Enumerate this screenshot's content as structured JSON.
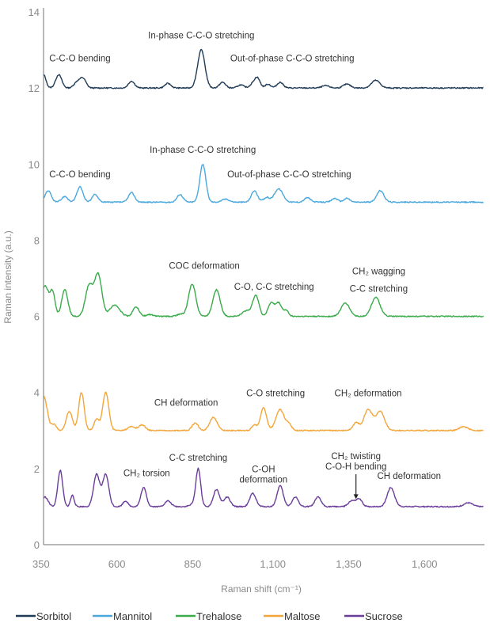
{
  "chart_data": {
    "type": "line",
    "title": "",
    "xlabel": "Raman shift (cm⁻¹)",
    "ylabel": "Raman intensity (a.u.)",
    "xlim": [
      350,
      1800
    ],
    "ylim": [
      0,
      14
    ],
    "x_ticks": [
      350,
      600,
      850,
      1100,
      1350,
      1600
    ],
    "x_tick_labels": [
      "350",
      "600",
      "850",
      "1,100",
      "1,350",
      "1,600"
    ],
    "y_ticks": [
      0,
      2,
      4,
      6,
      8,
      10,
      12,
      14
    ],
    "y_tick_labels": [
      "0",
      "2",
      "4",
      "6",
      "8",
      "10",
      "12",
      "14"
    ],
    "grid": false,
    "legend_position": "bottom",
    "series": [
      {
        "name": "Sorbitol",
        "color": "#1f3b57",
        "baseline": 12.0,
        "peaks": [
          [
            350,
            0.35,
            8
          ],
          [
            400,
            0.35,
            10
          ],
          [
            460,
            0.15,
            10
          ],
          [
            480,
            0.25,
            10
          ],
          [
            640,
            0.18,
            10
          ],
          [
            760,
            0.12,
            10
          ],
          [
            870,
            1.0,
            12
          ],
          [
            940,
            0.15,
            10
          ],
          [
            1000,
            0.08,
            10
          ],
          [
            1040,
            0.1,
            10
          ],
          [
            1055,
            0.25,
            9
          ],
          [
            1090,
            0.1,
            9
          ],
          [
            1130,
            0.15,
            10
          ],
          [
            1280,
            0.06,
            12
          ],
          [
            1350,
            0.1,
            12
          ],
          [
            1445,
            0.2,
            14
          ]
        ]
      },
      {
        "name": "Mannitol",
        "color": "#4aa8de",
        "baseline": 9.0,
        "peaks": [
          [
            365,
            0.3,
            10
          ],
          [
            420,
            0.15,
            10
          ],
          [
            470,
            0.4,
            10
          ],
          [
            520,
            0.2,
            10
          ],
          [
            640,
            0.25,
            10
          ],
          [
            800,
            0.2,
            10
          ],
          [
            875,
            1.0,
            10
          ],
          [
            950,
            0.08,
            12
          ],
          [
            1045,
            0.3,
            10
          ],
          [
            1085,
            0.12,
            10
          ],
          [
            1125,
            0.35,
            14
          ],
          [
            1220,
            0.12,
            10
          ],
          [
            1310,
            0.1,
            10
          ],
          [
            1350,
            0.1,
            10
          ],
          [
            1460,
            0.3,
            12
          ]
        ]
      },
      {
        "name": "Trehalose",
        "color": "#3aaa4a",
        "baseline": 6.0,
        "peaks": [
          [
            355,
            0.8,
            12
          ],
          [
            380,
            0.6,
            8
          ],
          [
            420,
            0.7,
            10
          ],
          [
            500,
            0.8,
            12
          ],
          [
            530,
            1.1,
            12
          ],
          [
            585,
            0.3,
            16
          ],
          [
            655,
            0.25,
            10
          ],
          [
            700,
            0.05,
            10
          ],
          [
            800,
            0.06,
            10
          ],
          [
            840,
            0.85,
            12
          ],
          [
            920,
            0.7,
            12
          ],
          [
            1020,
            0.15,
            14
          ],
          [
            1050,
            0.55,
            10
          ],
          [
            1100,
            0.35,
            10
          ],
          [
            1125,
            0.35,
            10
          ],
          [
            1150,
            0.15,
            8
          ],
          [
            1345,
            0.35,
            14
          ],
          [
            1445,
            0.5,
            14
          ]
        ]
      },
      {
        "name": "Maltose",
        "color": "#f2a63a",
        "baseline": 3.0,
        "peaks": [
          [
            350,
            0.9,
            12
          ],
          [
            385,
            0.15,
            8
          ],
          [
            435,
            0.5,
            10
          ],
          [
            475,
            1.0,
            9
          ],
          [
            525,
            0.3,
            8
          ],
          [
            555,
            1.0,
            10
          ],
          [
            640,
            0.1,
            12
          ],
          [
            675,
            0.15,
            10
          ],
          [
            850,
            0.2,
            10
          ],
          [
            910,
            0.35,
            12
          ],
          [
            1045,
            0.15,
            8
          ],
          [
            1075,
            0.6,
            10
          ],
          [
            1130,
            0.55,
            14
          ],
          [
            1160,
            0.15,
            8
          ],
          [
            1380,
            0.2,
            10
          ],
          [
            1420,
            0.55,
            14
          ],
          [
            1460,
            0.5,
            14
          ],
          [
            1735,
            0.1,
            14
          ]
        ]
      },
      {
        "name": "Sucrose",
        "color": "#6a3d9a",
        "baseline": 1.0,
        "peaks": [
          [
            355,
            0.25,
            10
          ],
          [
            405,
            0.95,
            8
          ],
          [
            445,
            0.3,
            6
          ],
          [
            525,
            0.85,
            10
          ],
          [
            555,
            0.85,
            10
          ],
          [
            620,
            0.15,
            8
          ],
          [
            680,
            0.5,
            9
          ],
          [
            760,
            0.15,
            10
          ],
          [
            840,
            0.05,
            10
          ],
          [
            860,
            1.0,
            8
          ],
          [
            920,
            0.45,
            10
          ],
          [
            955,
            0.25,
            10
          ],
          [
            1040,
            0.35,
            10
          ],
          [
            1130,
            0.55,
            10
          ],
          [
            1180,
            0.25,
            10
          ],
          [
            1255,
            0.25,
            10
          ],
          [
            1365,
            0.15,
            10
          ],
          [
            1390,
            0.2,
            10
          ],
          [
            1495,
            0.5,
            12
          ],
          [
            1750,
            0.1,
            14
          ]
        ]
      }
    ],
    "annotations": [
      {
        "text": "In-phase C-C-O stretching",
        "series": "Sorbitol",
        "x": 870,
        "y": 13.3
      },
      {
        "text": "C-C-O bending",
        "series": "Sorbitol",
        "x": 470,
        "y": 12.7
      },
      {
        "text": "Out-of-phase C-C-O stretching",
        "series": "Sorbitol",
        "x": 1170,
        "y": 12.7
      },
      {
        "text": "In-phase C-C-O stretching",
        "series": "Mannitol",
        "x": 875,
        "y": 10.3
      },
      {
        "text": "C-C-O bending",
        "series": "Mannitol",
        "x": 470,
        "y": 9.65
      },
      {
        "text": "Out-of-phase C-C-O stretching",
        "series": "Mannitol",
        "x": 1160,
        "y": 9.65
      },
      {
        "text": "COC deformation",
        "series": "Trehalose",
        "x": 880,
        "y": 7.25
      },
      {
        "text": "C-O, C-C stretching",
        "series": "Trehalose",
        "x": 1110,
        "y": 6.7
      },
      {
        "text": "CH₂ wagging",
        "series": "Trehalose",
        "x": 1455,
        "y": 7.1
      },
      {
        "text": "C-C stretching",
        "series": "Trehalose",
        "x": 1455,
        "y": 6.65
      },
      {
        "text": "CH deformation",
        "series": "Maltose",
        "x": 820,
        "y": 3.65
      },
      {
        "text": "C-O stretching",
        "series": "Maltose",
        "x": 1115,
        "y": 3.9
      },
      {
        "text": "CH₂ deformation",
        "series": "Maltose",
        "x": 1420,
        "y": 3.9
      },
      {
        "text": "C-C stretching",
        "series": "Sucrose",
        "x": 860,
        "y": 2.2
      },
      {
        "text": "CH₂ torsion",
        "series": "Sucrose",
        "x": 690,
        "y": 1.8
      },
      {
        "text": "C-OH",
        "series": "Sucrose",
        "x": 1075,
        "y": 1.9
      },
      {
        "text": "deformation",
        "series": "Sucrose",
        "x": 1075,
        "y": 1.63
      },
      {
        "text": "CH₂ twisting",
        "series": "Sucrose",
        "x": 1380,
        "y": 2.25
      },
      {
        "text": "C-O-H bending",
        "series": "Sucrose",
        "x": 1380,
        "y": 1.98
      },
      {
        "text": "CH deformation",
        "series": "Sucrose",
        "x": 1555,
        "y": 1.73
      }
    ],
    "arrow": {
      "series": "Sucrose",
      "from": [
        1380,
        1.85
      ],
      "to": [
        1380,
        1.2
      ]
    }
  }
}
